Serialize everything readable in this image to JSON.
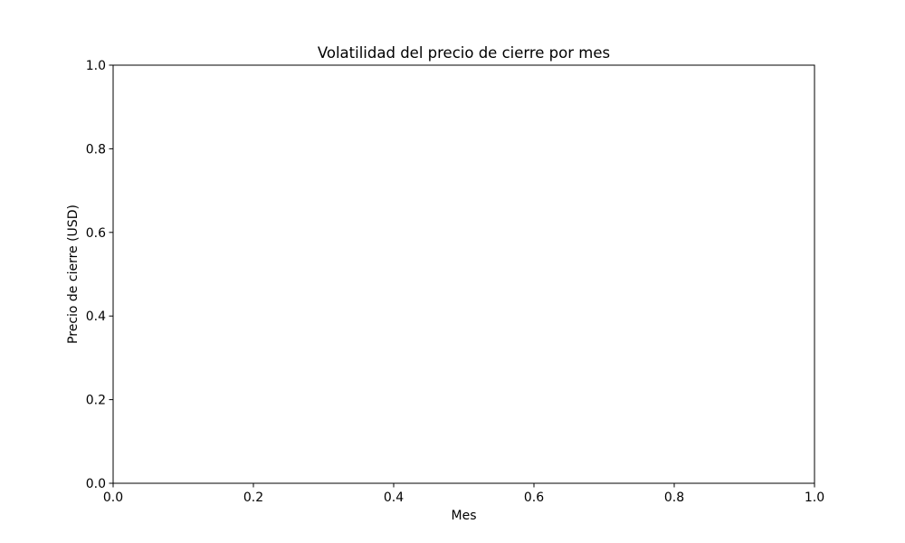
{
  "chart_data": {
    "type": "line",
    "title": "Volatilidad del precio de cierre por mes",
    "xlabel": "Mes",
    "ylabel": "Precio de cierre (USD)",
    "xlim": [
      0,
      1
    ],
    "ylim": [
      0,
      1
    ],
    "x_ticks": [
      "0.0",
      "0.2",
      "0.4",
      "0.6",
      "0.8",
      "1.0"
    ],
    "y_ticks": [
      "0.0",
      "0.2",
      "0.4",
      "0.6",
      "0.8",
      "1.0"
    ],
    "series": [],
    "grid": false,
    "legend": "none"
  }
}
